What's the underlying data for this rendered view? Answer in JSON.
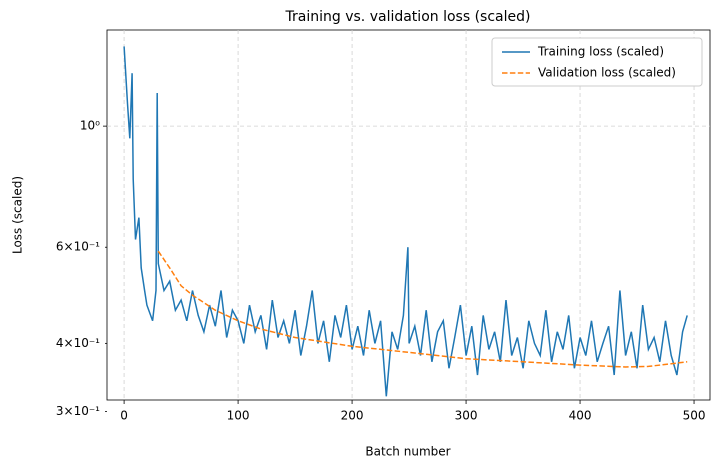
{
  "chart_data": {
    "type": "line",
    "title": "Training vs. validation loss (scaled)",
    "xlabel": "Batch number",
    "ylabel": "Loss (scaled)",
    "xlim": [
      -15,
      514
    ],
    "ylim": [
      0.315,
      1.5
    ],
    "yscale": "log",
    "xticks": [
      0,
      100,
      200,
      300,
      400,
      500
    ],
    "yticks": [
      {
        "value": 1,
        "label": "10⁰"
      }
    ],
    "yminor_ticks": [
      {
        "value": 0.6,
        "label": "6×10⁻¹"
      },
      {
        "value": 0.4,
        "label": "4×10⁻¹"
      },
      {
        "value": 0.3,
        "label": "3×10⁻¹"
      }
    ],
    "grid": true,
    "legend": "upper right",
    "series": [
      {
        "name": "Training loss (scaled)",
        "color": "#1f77b4",
        "style": "solid",
        "x": [
          0,
          3,
          5,
          7,
          8,
          10,
          13,
          15,
          18,
          20,
          25,
          28,
          29,
          30,
          35,
          40,
          45,
          50,
          55,
          60,
          65,
          70,
          75,
          80,
          85,
          90,
          95,
          100,
          105,
          110,
          115,
          120,
          125,
          130,
          135,
          140,
          145,
          150,
          155,
          160,
          165,
          170,
          175,
          180,
          185,
          190,
          195,
          200,
          205,
          210,
          215,
          220,
          225,
          230,
          235,
          240,
          245,
          249,
          250,
          255,
          260,
          265,
          270,
          275,
          280,
          285,
          290,
          295,
          300,
          305,
          310,
          315,
          320,
          325,
          330,
          335,
          340,
          345,
          350,
          355,
          360,
          365,
          370,
          375,
          380,
          385,
          390,
          395,
          400,
          405,
          410,
          415,
          420,
          425,
          430,
          435,
          440,
          445,
          450,
          455,
          460,
          465,
          470,
          475,
          480,
          485,
          490,
          494
        ],
        "values": [
          1.4,
          1.1,
          0.95,
          1.25,
          0.8,
          0.62,
          0.68,
          0.55,
          0.5,
          0.47,
          0.44,
          0.5,
          1.15,
          0.56,
          0.5,
          0.52,
          0.46,
          0.48,
          0.44,
          0.5,
          0.45,
          0.42,
          0.47,
          0.43,
          0.5,
          0.41,
          0.46,
          0.44,
          0.4,
          0.47,
          0.42,
          0.45,
          0.39,
          0.48,
          0.41,
          0.44,
          0.4,
          0.46,
          0.38,
          0.43,
          0.5,
          0.4,
          0.44,
          0.37,
          0.45,
          0.41,
          0.47,
          0.39,
          0.43,
          0.38,
          0.46,
          0.4,
          0.44,
          0.32,
          0.42,
          0.39,
          0.45,
          0.6,
          0.4,
          0.43,
          0.38,
          0.46,
          0.37,
          0.42,
          0.44,
          0.36,
          0.41,
          0.47,
          0.38,
          0.43,
          0.35,
          0.45,
          0.39,
          0.42,
          0.37,
          0.48,
          0.38,
          0.41,
          0.36,
          0.44,
          0.4,
          0.38,
          0.46,
          0.37,
          0.42,
          0.39,
          0.45,
          0.36,
          0.41,
          0.38,
          0.44,
          0.37,
          0.4,
          0.43,
          0.35,
          0.5,
          0.38,
          0.42,
          0.36,
          0.47,
          0.39,
          0.41,
          0.37,
          0.44,
          0.38,
          0.35,
          0.42,
          0.45
        ]
      },
      {
        "name": "Validation loss (scaled)",
        "color": "#ff7f0e",
        "style": "dashed",
        "x": [
          30,
          40,
          50,
          60,
          70,
          80,
          100,
          120,
          150,
          200,
          250,
          300,
          350,
          400,
          440,
          460,
          480,
          494
        ],
        "values": [
          0.59,
          0.55,
          0.51,
          0.49,
          0.475,
          0.46,
          0.44,
          0.425,
          0.41,
          0.395,
          0.385,
          0.375,
          0.37,
          0.365,
          0.362,
          0.363,
          0.367,
          0.37
        ]
      }
    ]
  }
}
